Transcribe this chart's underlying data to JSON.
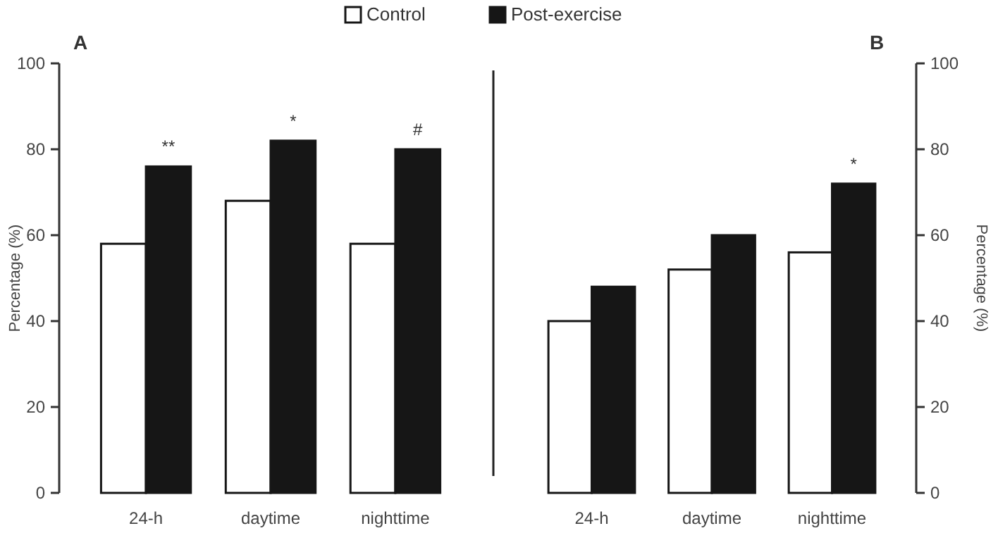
{
  "chart_data": [
    {
      "type": "bar",
      "title": "A",
      "ylabel": "Percentage (%)",
      "categories": [
        "24-h",
        "daytime",
        "nighttime"
      ],
      "series": [
        {
          "name": "Control",
          "color": "#ffffff",
          "values": [
            58,
            68,
            58
          ]
        },
        {
          "name": "Post-exercise",
          "color": "#161616",
          "values": [
            76,
            82,
            80
          ]
        }
      ],
      "ylim": [
        0,
        100
      ],
      "yticks": [
        0,
        20,
        40,
        60,
        80,
        100
      ],
      "grid": false,
      "legend": "top right",
      "annotations": [
        {
          "text": "**",
          "x": "24-h",
          "y": 76
        },
        {
          "text": "*",
          "x": "daytime",
          "y": 82
        },
        {
          "text": "#",
          "x": "nighttime",
          "y": 80
        }
      ]
    },
    {
      "type": "bar",
      "title": "B",
      "ylabel": "Percentage (%)",
      "categories": [
        "24-h",
        "daytime",
        "nighttime"
      ],
      "series": [
        {
          "color": "#ffffff",
          "values": [
            40,
            52,
            56
          ]
        },
        {
          "color": "#161616",
          "values": [
            48,
            60,
            72
          ]
        }
      ],
      "ylim": [
        0,
        100
      ],
      "yticks": [
        0,
        20,
        40,
        60,
        80,
        100
      ],
      "grid": false,
      "legend": false,
      "annotations": [
        {
          "text": "*",
          "x": "nighttime",
          "y": 72
        }
      ]
    }
  ]
}
